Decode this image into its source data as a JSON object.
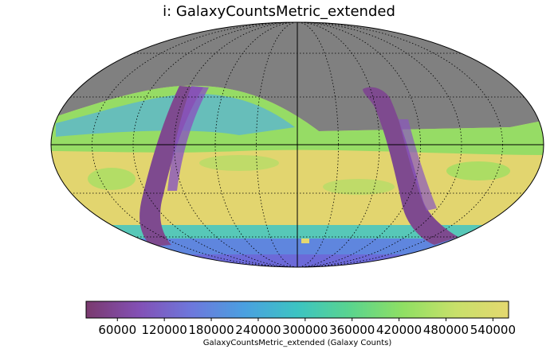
{
  "chart_data": {
    "type": "heatmap",
    "title": "i: GalaxyCountsMetric_extended",
    "projection": "mollweide",
    "graticule": "dotted",
    "missing_color": "#808080",
    "colorbar": {
      "label": "GalaxyCountsMetric_extended (Galaxy Counts)",
      "range": [
        20000,
        560000
      ],
      "ticks": [
        60000,
        120000,
        180000,
        240000,
        300000,
        360000,
        420000,
        480000,
        540000
      ],
      "tick_labels": [
        "60000",
        "120000",
        "180000",
        "240000",
        "300000",
        "360000",
        "420000",
        "480000",
        "540000"
      ],
      "colors": [
        "#7a3a6e",
        "#8350b5",
        "#6d78dc",
        "#4aa0e0",
        "#3cc4c2",
        "#5ad48e",
        "#8fdf63",
        "#c8e06a",
        "#e4d870"
      ]
    }
  }
}
